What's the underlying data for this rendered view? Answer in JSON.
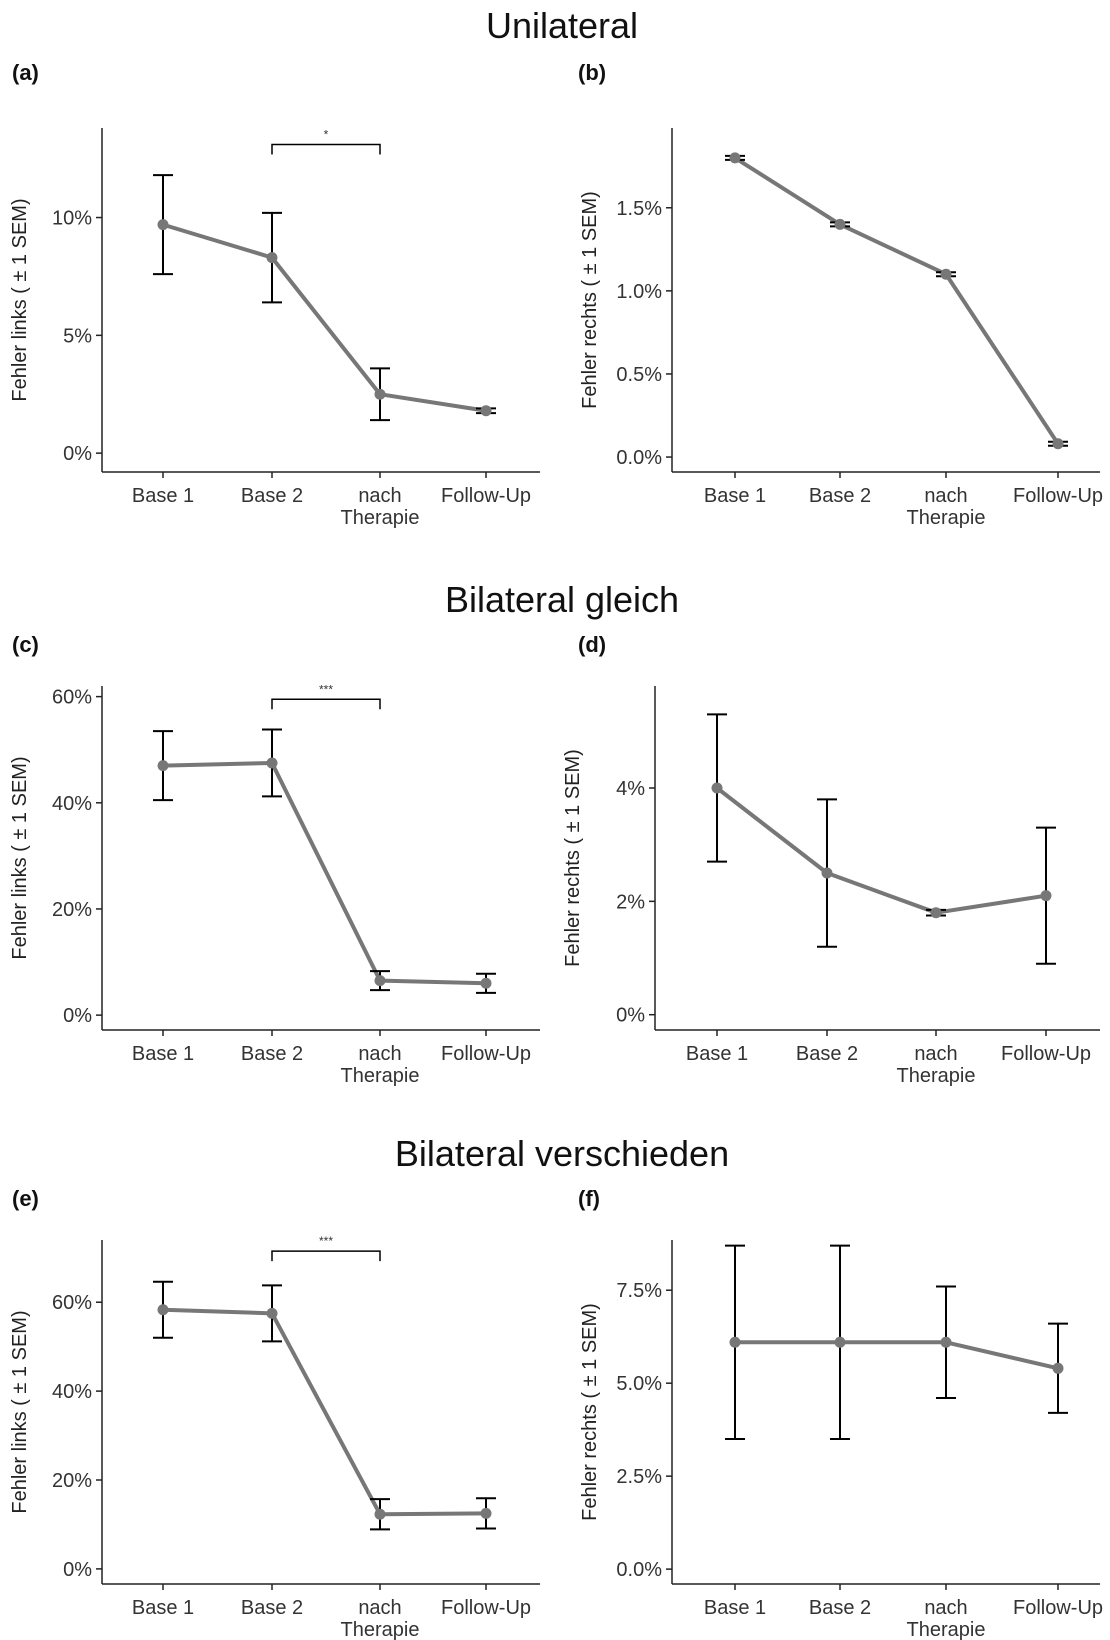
{
  "sections": [
    {
      "title": "Unilateral"
    },
    {
      "title": "Bilateral gleich"
    },
    {
      "title": "Bilateral verschieden"
    }
  ],
  "chart_data": [
    {
      "panel": "(a)",
      "type": "line",
      "categories": [
        "Base 1",
        "Base 2",
        "nach\nTherapie",
        "Follow-Up"
      ],
      "ylabel": "Fehler links ( ± 1 SEM)",
      "series": [
        {
          "values": [
            9.7,
            8.3,
            2.5,
            1.8
          ],
          "error": [
            2.1,
            1.9,
            1.1,
            0.1
          ]
        }
      ],
      "ylim": [
        -0.8,
        13.8
      ],
      "yticks": [
        0,
        5,
        10
      ],
      "yticklabels": [
        "0%",
        "5%",
        "10%"
      ],
      "significance": {
        "from": 1,
        "to": 2,
        "label": "*",
        "y": 13.1
      }
    },
    {
      "panel": "(b)",
      "type": "line",
      "categories": [
        "Base 1",
        "Base 2",
        "nach\nTherapie",
        "Follow-Up"
      ],
      "ylabel": "Fehler rechts ( ± 1 SEM)",
      "series": [
        {
          "values": [
            1.8,
            1.4,
            1.1,
            0.08
          ],
          "error": [
            0.012,
            0.012,
            0.012,
            0.012
          ]
        }
      ],
      "ylim": [
        -0.09,
        1.98
      ],
      "yticks": [
        0,
        0.5,
        1.0,
        1.5
      ],
      "yticklabels": [
        "0.0%",
        "0.5%",
        "1.0%",
        "1.5%"
      ]
    },
    {
      "panel": "(c)",
      "type": "line",
      "categories": [
        "Base 1",
        "Base 2",
        "nach\nTherapie",
        "Follow-Up"
      ],
      "ylabel": "Fehler links ( ± 1 SEM)",
      "series": [
        {
          "values": [
            47,
            47.5,
            6.5,
            6
          ],
          "error": [
            6.5,
            6.3,
            1.8,
            1.8
          ]
        }
      ],
      "ylim": [
        -2.8,
        62
      ],
      "yticks": [
        0,
        20,
        40,
        60
      ],
      "yticklabels": [
        "0%",
        "20%",
        "40%",
        "60%"
      ],
      "significance": {
        "from": 1,
        "to": 2,
        "label": "***",
        "y": 59.5
      }
    },
    {
      "panel": "(d)",
      "type": "line",
      "categories": [
        "Base 1",
        "Base 2",
        "nach\nTherapie",
        "Follow-Up"
      ],
      "ylabel": "Fehler rechts ( ± 1 SEM)",
      "series": [
        {
          "values": [
            4.0,
            2.5,
            1.8,
            2.1
          ],
          "error": [
            1.3,
            1.3,
            0.05,
            1.2
          ]
        }
      ],
      "ylim": [
        -0.27,
        5.8
      ],
      "yticks": [
        0,
        2,
        4
      ],
      "yticklabels": [
        "0%",
        "2%",
        "4%"
      ]
    },
    {
      "panel": "(e)",
      "type": "line",
      "categories": [
        "Base 1",
        "Base 2",
        "nach\nTherapie",
        "Follow-Up"
      ],
      "ylabel": "Fehler links ( ± 1 SEM)",
      "series": [
        {
          "values": [
            58.3,
            57.5,
            12.3,
            12.5
          ],
          "error": [
            6.3,
            6.3,
            3.4,
            3.4
          ]
        }
      ],
      "ylim": [
        -3.4,
        74
      ],
      "yticks": [
        0,
        20,
        40,
        60
      ],
      "yticklabels": [
        "0%",
        "20%",
        "40%",
        "60%"
      ],
      "significance": {
        "from": 1,
        "to": 2,
        "label": "***",
        "y": 71.5
      }
    },
    {
      "panel": "(f)",
      "type": "line",
      "categories": [
        "Base 1",
        "Base 2",
        "nach\nTherapie",
        "Follow-Up"
      ],
      "ylabel": "Fehler rechts ( ± 1 SEM)",
      "series": [
        {
          "values": [
            6.1,
            6.1,
            6.1,
            5.4
          ],
          "error": [
            2.6,
            2.6,
            1.5,
            1.2
          ]
        }
      ],
      "ylim": [
        -0.4,
        8.85
      ],
      "yticks": [
        0,
        2.5,
        5.0,
        7.5
      ],
      "yticklabels": [
        "0.0%",
        "2.5%",
        "5.0%",
        "7.5%"
      ]
    }
  ]
}
